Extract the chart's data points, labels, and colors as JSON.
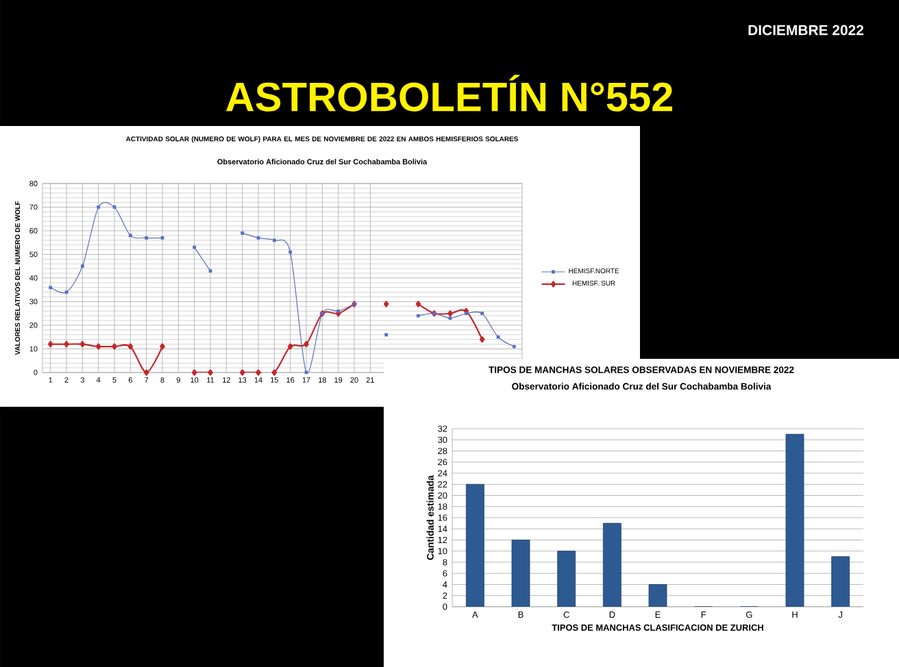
{
  "chart_data": [
    {
      "type": "line",
      "title": "ACTIVIDAD SOLAR (NUMERO DE WOLF) PARA EL MES DE NOVIEMBRE DE 2022 EN AMBOS HEMISFERIOS SOLARES",
      "subtitle": "Observatorio Aficionado Cruz del Sur   Cochabamba  Bolivia",
      "ylabel": "VALORES RELATIVOS DEL NUMERO DE WOLF",
      "annotations": [
        "ASTROBOLETÍN  N°552",
        "DICIEMBRE 2022"
      ],
      "x": [
        1,
        2,
        3,
        4,
        5,
        6,
        7,
        8,
        9,
        10,
        11,
        12,
        13,
        14,
        15,
        16,
        17,
        18,
        19,
        20,
        21,
        22,
        23,
        24,
        25,
        26,
        27,
        28,
        29,
        30
      ],
      "xlim": [
        0.5,
        30.5
      ],
      "xticks": [
        1,
        2,
        3,
        4,
        5,
        6,
        7,
        8,
        9,
        10,
        11,
        12,
        13,
        14,
        15,
        16,
        17,
        18,
        19,
        20,
        21
      ],
      "ylim": [
        0,
        80
      ],
      "yticks": [
        0,
        10,
        20,
        30,
        40,
        50,
        60,
        70,
        80
      ],
      "grid": true,
      "legend": "right",
      "series": [
        {
          "name": "HEMISF.NORTE",
          "color": "#5b6fbf",
          "marker": "square",
          "values": [
            36,
            34,
            45,
            70,
            70,
            58,
            57,
            57,
            null,
            53,
            43,
            null,
            59,
            57,
            56,
            51,
            0,
            25,
            26,
            29,
            null,
            16,
            null,
            24,
            25,
            23,
            25,
            25,
            15,
            11
          ]
        },
        {
          "name": "HEMISF. SUR",
          "color": "#c0282d",
          "marker": "diamond",
          "values": [
            12,
            12,
            12,
            11,
            11,
            11,
            0,
            11,
            null,
            0,
            0,
            null,
            0,
            0,
            0,
            11,
            12,
            25,
            25,
            29,
            null,
            29,
            null,
            29,
            25,
            25,
            26,
            14,
            null,
            null
          ]
        }
      ]
    },
    {
      "type": "bar",
      "title": "TIPOS DE MANCHAS SOLARES OBSERVADAS  EN NOVIEMBRE  2022",
      "subtitle": "Observatorio Aficionado Cruz del Sur   Cochabamba  Bolivia",
      "xlabel": "TIPOS DE MANCHAS CLASIFICACION DE ZURICH",
      "ylabel": "Cantidad estimada",
      "categories": [
        "A",
        "B",
        "C",
        "D",
        "E",
        "F",
        "G",
        "H",
        "J"
      ],
      "values": [
        22,
        12,
        10,
        15,
        4,
        0,
        0,
        31,
        9
      ],
      "color": "#2d5a91",
      "ylim": [
        0,
        32
      ],
      "yticks": [
        0,
        2,
        4,
        6,
        8,
        10,
        12,
        14,
        16,
        18,
        20,
        22,
        24,
        26,
        28,
        30,
        32
      ],
      "grid": "y"
    }
  ]
}
